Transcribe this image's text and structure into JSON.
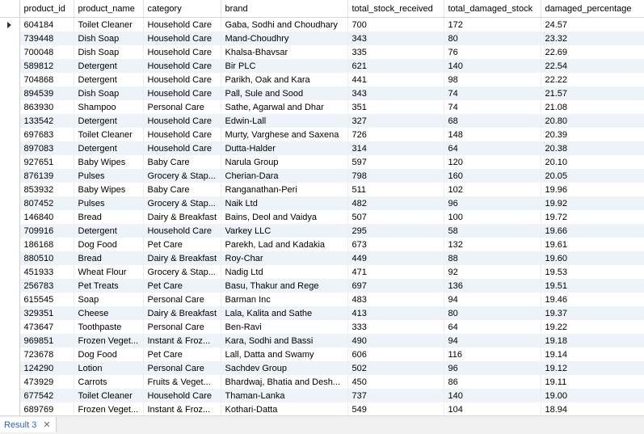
{
  "columns": [
    "product_id",
    "product_name",
    "category",
    "brand",
    "total_stock_received",
    "total_damaged_stock",
    "damaged_percentage"
  ],
  "rows": [
    [
      "604184",
      "Toilet Cleaner",
      "Household Care",
      "Gaba, Sodhi and Choudhary",
      "700",
      "172",
      "24.57"
    ],
    [
      "739448",
      "Dish Soap",
      "Household Care",
      "Mand-Choudhry",
      "343",
      "80",
      "23.32"
    ],
    [
      "700048",
      "Dish Soap",
      "Household Care",
      "Khalsa-Bhavsar",
      "335",
      "76",
      "22.69"
    ],
    [
      "589812",
      "Detergent",
      "Household Care",
      "Bir PLC",
      "621",
      "140",
      "22.54"
    ],
    [
      "704868",
      "Detergent",
      "Household Care",
      "Parikh, Oak and Kara",
      "441",
      "98",
      "22.22"
    ],
    [
      "894539",
      "Dish Soap",
      "Household Care",
      "Pall, Sule and Sood",
      "343",
      "74",
      "21.57"
    ],
    [
      "863930",
      "Shampoo",
      "Personal Care",
      "Sathe, Agarwal and Dhar",
      "351",
      "74",
      "21.08"
    ],
    [
      "133542",
      "Detergent",
      "Household Care",
      "Edwin-Lall",
      "327",
      "68",
      "20.80"
    ],
    [
      "697683",
      "Toilet Cleaner",
      "Household Care",
      "Murty, Varghese and Saxena",
      "726",
      "148",
      "20.39"
    ],
    [
      "897083",
      "Detergent",
      "Household Care",
      "Dutta-Halder",
      "314",
      "64",
      "20.38"
    ],
    [
      "927651",
      "Baby Wipes",
      "Baby Care",
      "Narula Group",
      "597",
      "120",
      "20.10"
    ],
    [
      "876139",
      "Pulses",
      "Grocery & Stap...",
      "Cherian-Dara",
      "798",
      "160",
      "20.05"
    ],
    [
      "853932",
      "Baby Wipes",
      "Baby Care",
      "Ranganathan-Peri",
      "511",
      "102",
      "19.96"
    ],
    [
      "807452",
      "Pulses",
      "Grocery & Stap...",
      "Naik Ltd",
      "482",
      "96",
      "19.92"
    ],
    [
      "146840",
      "Bread",
      "Dairy & Breakfast",
      "Bains, Deol and Vaidya",
      "507",
      "100",
      "19.72"
    ],
    [
      "709916",
      "Detergent",
      "Household Care",
      "Varkey LLC",
      "295",
      "58",
      "19.66"
    ],
    [
      "186168",
      "Dog Food",
      "Pet Care",
      "Parekh, Lad and Kadakia",
      "673",
      "132",
      "19.61"
    ],
    [
      "880510",
      "Bread",
      "Dairy & Breakfast",
      "Roy-Char",
      "449",
      "88",
      "19.60"
    ],
    [
      "451933",
      "Wheat Flour",
      "Grocery & Stap...",
      "Nadig Ltd",
      "471",
      "92",
      "19.53"
    ],
    [
      "256783",
      "Pet Treats",
      "Pet Care",
      "Basu, Thakur and Rege",
      "697",
      "136",
      "19.51"
    ],
    [
      "615545",
      "Soap",
      "Personal Care",
      "Barman Inc",
      "483",
      "94",
      "19.46"
    ],
    [
      "329351",
      "Cheese",
      "Dairy & Breakfast",
      "Lala, Kalita and Sathe",
      "413",
      "80",
      "19.37"
    ],
    [
      "473647",
      "Toothpaste",
      "Personal Care",
      "Ben-Ravi",
      "333",
      "64",
      "19.22"
    ],
    [
      "969851",
      "Frozen Veget...",
      "Instant & Froz...",
      "Kara, Sodhi and Bassi",
      "490",
      "94",
      "19.18"
    ],
    [
      "723678",
      "Dog Food",
      "Pet Care",
      "Lall, Datta and Swamy",
      "606",
      "116",
      "19.14"
    ],
    [
      "124290",
      "Lotion",
      "Personal Care",
      "Sachdev Group",
      "502",
      "96",
      "19.12"
    ],
    [
      "473929",
      "Carrots",
      "Fruits & Veget...",
      "Bhardwaj, Bhatia and Desh...",
      "450",
      "86",
      "19.11"
    ],
    [
      "677542",
      "Toilet Cleaner",
      "Household Care",
      "Thaman-Lanka",
      "737",
      "140",
      "19.00"
    ],
    [
      "689769",
      "Frozen Veget...",
      "Instant & Froz...",
      "Kothari-Datta",
      "549",
      "104",
      "18.94"
    ]
  ],
  "status": {
    "tab_label": "Result 3",
    "close_glyph": "✕"
  }
}
